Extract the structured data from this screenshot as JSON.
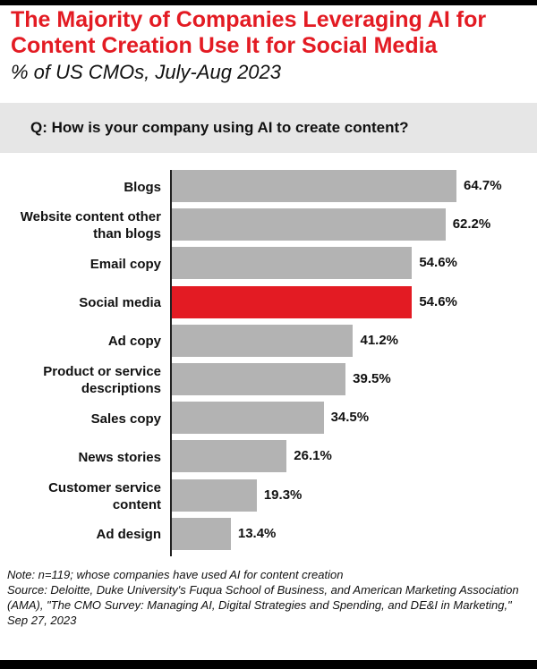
{
  "title": "The Majority of Companies Leveraging AI for Content Creation Use It for Social Media",
  "subtitle": "% of US CMOs, July-Aug 2023",
  "question": "Q: How is your company using AI to create content?",
  "colors": {
    "title": "#e31b23",
    "bar": "#b3b3b3",
    "highlight": "#e31b23"
  },
  "chart_data": {
    "type": "bar",
    "orientation": "horizontal",
    "categories": [
      "Blogs",
      "Website content other than blogs",
      "Email copy",
      "Social media",
      "Ad copy",
      "Product or service descriptions",
      "Sales copy",
      "News stories",
      "Customer service content",
      "Ad design"
    ],
    "category_lines": [
      [
        "Blogs"
      ],
      [
        "Website content other",
        "than blogs"
      ],
      [
        "Email copy"
      ],
      [
        "Social media"
      ],
      [
        "Ad copy"
      ],
      [
        "Product or service",
        "descriptions"
      ],
      [
        "Sales copy"
      ],
      [
        "News stories"
      ],
      [
        "Customer service",
        "content"
      ],
      [
        "Ad design"
      ]
    ],
    "values": [
      64.7,
      62.2,
      54.6,
      54.6,
      41.2,
      39.5,
      34.5,
      26.1,
      19.3,
      13.4
    ],
    "value_labels": [
      "64.7%",
      "62.2%",
      "54.6%",
      "54.6%",
      "41.2%",
      "39.5%",
      "34.5%",
      "26.1%",
      "19.3%",
      "13.4%"
    ],
    "highlight_index": 3,
    "xlim": [
      0,
      100
    ],
    "unit": "%"
  },
  "notes": {
    "note": "Note: n=119; whose companies have used AI for content creation",
    "source": "Source: Deloitte, Duke University's Fuqua School of Business, and American Marketing Association (AMA), \"The CMO Survey: Managing AI, Digital Strategies and Spending, and DE&I in Marketing,\" Sep 27, 2023"
  }
}
